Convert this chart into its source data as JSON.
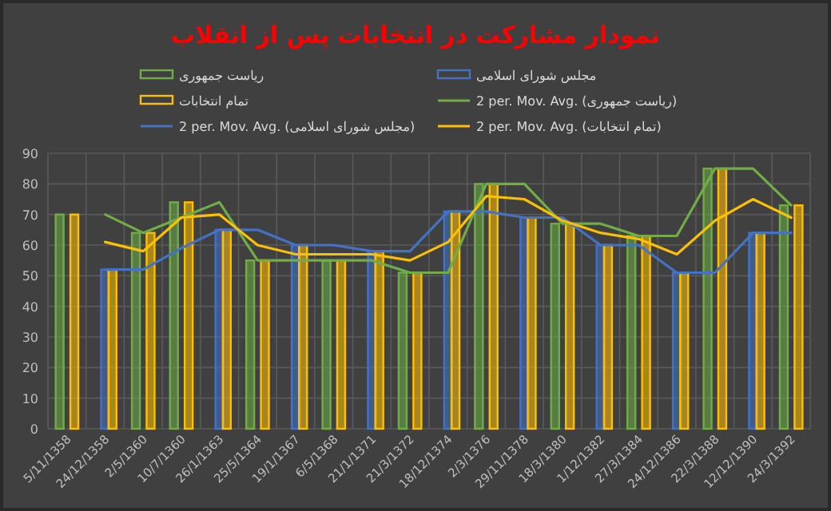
{
  "chart_data": {
    "type": "bar",
    "title": "نمودار مشارکت در انتخابات پس از انقلاب",
    "categories": [
      "5/11/1358",
      "24/12/1358",
      "2/5/1360",
      "10/7/1360",
      "26/1/1363",
      "25/5/1364",
      "19/1/1367",
      "6/5/1368",
      "21/1/1371",
      "21/3/1372",
      "18/12/1374",
      "2/3/1376",
      "29/11/1378",
      "18/3/1380",
      "1/12/1382",
      "27/3/1384",
      "24/12/1386",
      "22/3/1388",
      "12/12/1390",
      "24/3/1392"
    ],
    "ylim": [
      0,
      90
    ],
    "yticks": [
      0,
      10,
      20,
      30,
      40,
      50,
      60,
      70,
      80,
      90
    ],
    "grid": true,
    "legend": "top",
    "series": [
      {
        "name": "ریاست جمهوری",
        "color": "#70ad47",
        "values": [
          70,
          null,
          64,
          74,
          null,
          55,
          null,
          55,
          null,
          51,
          null,
          80,
          null,
          67,
          null,
          63,
          null,
          85,
          null,
          73
        ]
      },
      {
        "name": "مجلس شورای اسلامی",
        "color": "#4472c4",
        "values": [
          null,
          52,
          null,
          null,
          65,
          null,
          60,
          null,
          58,
          null,
          71,
          null,
          69,
          null,
          60,
          null,
          51,
          null,
          64,
          null
        ]
      },
      {
        "name": "تمام انتخابات",
        "color": "#ffc000",
        "values": [
          70,
          52,
          64,
          74,
          65,
          55,
          60,
          55,
          58,
          51,
          71,
          80,
          69,
          67,
          60,
          63,
          51,
          85,
          64,
          73
        ]
      },
      {
        "name": "2 per. Mov. Avg. (ریاست جمهوری)",
        "type": "line",
        "color": "#70ad47",
        "values": [
          null,
          70,
          64,
          69,
          74,
          55,
          55,
          55,
          55,
          51,
          51,
          80,
          80,
          67,
          67,
          63,
          63,
          85,
          85,
          73
        ]
      },
      {
        "name": "2 per. Mov. Avg. (مجلس شورای اسلامی)",
        "type": "line",
        "color": "#4472c4",
        "values": [
          null,
          52,
          52,
          59,
          65,
          65,
          60,
          60,
          58,
          58,
          71,
          71,
          69,
          69,
          60,
          60,
          51,
          51,
          64,
          64
        ]
      },
      {
        "name": "2 per. Mov. Avg. (تمام انتخابات)",
        "type": "line",
        "color": "#ffc000",
        "values": [
          null,
          61,
          58,
          69,
          70,
          60,
          57,
          57,
          57,
          55,
          61,
          76,
          75,
          68,
          64,
          62,
          57,
          68,
          75,
          69
        ]
      }
    ]
  }
}
